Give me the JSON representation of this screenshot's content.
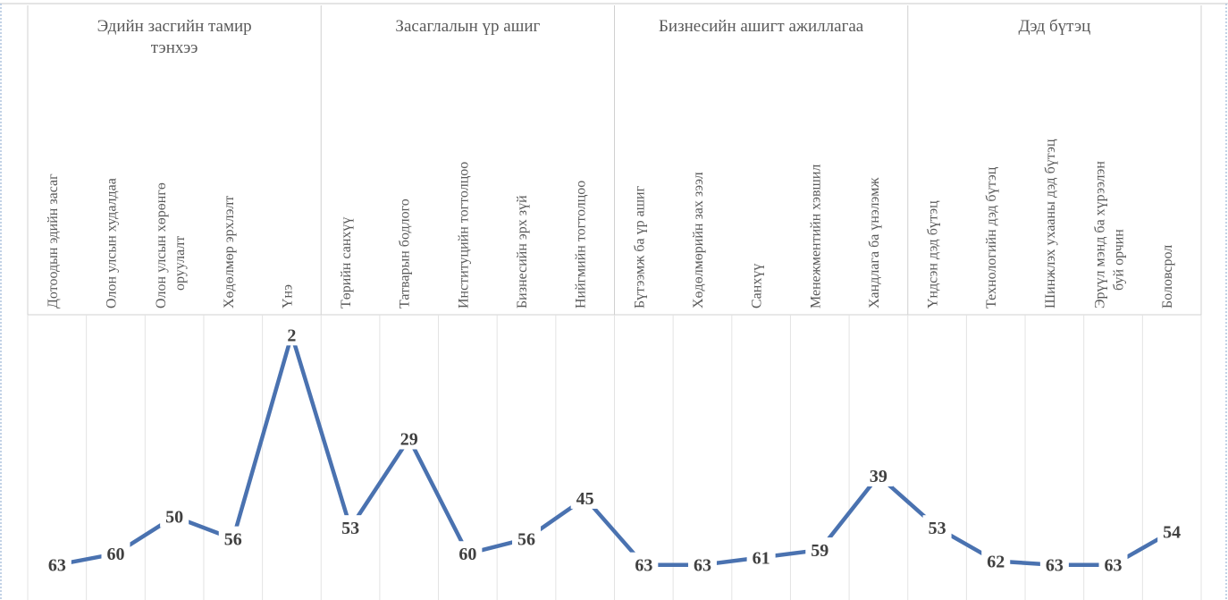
{
  "chart_data": {
    "type": "line",
    "groups": [
      {
        "label": [
          "Эдийн засгийн тамир",
          "тэнхээ"
        ],
        "count": 5
      },
      {
        "label": [
          "Засаглалын үр ашиг"
        ],
        "count": 5
      },
      {
        "label": [
          "Бизнесийн ашигт ажиллагаа"
        ],
        "count": 5
      },
      {
        "label": [
          "Дэд бүтэц"
        ],
        "count": 5
      }
    ],
    "categories": [
      [
        "Дотоодын эдийн засаг"
      ],
      [
        "Олон улсын худалдаа"
      ],
      [
        "Олон улсын хөрөнгө",
        "оруулалт"
      ],
      [
        "Хөдөлмөр эрхлэлт"
      ],
      [
        "Үнэ"
      ],
      [
        "Төрийн санхүү"
      ],
      [
        "Татварын бодлого"
      ],
      [
        "Институцийн тогтолцоо"
      ],
      [
        "Бизнесийн эрх зүй"
      ],
      [
        "Нийгмийн тогтолцоо"
      ],
      [
        "Бүтээмж ба үр ашиг"
      ],
      [
        "Хөдөлмөрийн зах зээл"
      ],
      [
        "Санхүү"
      ],
      [
        "Менежментийн хэвшил"
      ],
      [
        "Хандлага ба үнэлэмж"
      ],
      [
        "Үндсэн дэд бүтэц"
      ],
      [
        "Технологийн дэд бүтэц"
      ],
      [
        "Шинжлэх ухааны дэд бүтэц"
      ],
      [
        "Эрүүл мэнд ба хүрээлэн",
        "буй орчин"
      ],
      [
        "Боловсрол"
      ]
    ],
    "series": [
      {
        "values": [
          63,
          60,
          50,
          56,
          2,
          53,
          29,
          60,
          56,
          45,
          63,
          63,
          61,
          59,
          39,
          53,
          62,
          63,
          63,
          54
        ]
      }
    ],
    "line_color": "#4a72b0",
    "ylim": [
      0,
      65
    ],
    "grid": "vertical"
  }
}
